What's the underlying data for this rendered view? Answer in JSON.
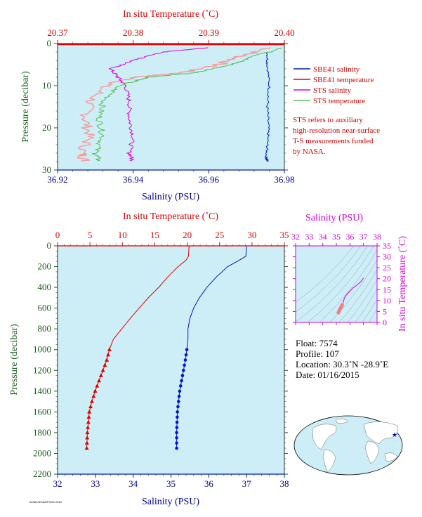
{
  "colors": {
    "plot_bg": "#cdeef7",
    "red": "#e00000",
    "blue": "#0018c8",
    "magenta": "#d800d8",
    "green": "#55c055",
    "pink": "#f4a0a0",
    "darkgreen": "#1a5a1a",
    "navy": "#0000a0"
  },
  "top_plot": {
    "top_axis_title": "In situ Temperature (˚C)",
    "bottom_axis_title": "Salinity (PSU)",
    "left_axis_title": "Pressure (decibar)"
  },
  "bottom_plot": {
    "top_axis_title": "In situ Temperature (˚C)",
    "bottom_axis_title": "Salinity (PSU)",
    "left_axis_title": "Pressure (decibar)"
  },
  "ts_plot": {
    "top_axis_title": "Salinity (PSU)",
    "right_axis_title": "In situ Temperature (˚C)"
  },
  "legend": [
    {
      "label": "SBE41 salinity",
      "color": "#0018c8"
    },
    {
      "label": "SBE41 temperature",
      "color": "#e00000"
    },
    {
      "label": "STS salinity",
      "color": "#d800d8"
    },
    {
      "label": "STS temperature",
      "color": "#55c055"
    }
  ],
  "note": [
    "STS refers to auxiliary",
    "high-resolution near-surface",
    "T-S measurements funded",
    "by NASA."
  ],
  "float_info": {
    "float": "Float:  7574",
    "profile": "Profile:  107",
    "location": "Location:  30.3˚N  -28.9˚E",
    "date": "Date:  01/16/2015"
  },
  "footer_text": "AOML/NOAA/PhOD 2015",
  "chart_data": [
    {
      "type": "line",
      "name": "near-surface profile",
      "xlabel_bottom": "Salinity (PSU)",
      "xlabel_top": "In situ Temperature (˚C)",
      "ylabel": "Pressure (decibar)",
      "salinity_range": [
        36.92,
        36.98
      ],
      "salinity_ticks": [
        "36.92",
        "36.94",
        "36.96",
        "36.98"
      ],
      "temperature_range": [
        20.37,
        20.4
      ],
      "temperature_ticks": [
        "20.37",
        "20.38",
        "20.39",
        "20.40"
      ],
      "pressure_range": [
        0,
        30
      ],
      "pressure_ticks": [
        "0",
        "10",
        "20",
        "30"
      ],
      "y_inverted": true,
      "series": [
        {
          "name": "SBE41 salinity",
          "axis": "salinity",
          "x": [
            36.9755,
            36.9755,
            36.976,
            36.9755,
            36.9758,
            36.9755,
            36.9752,
            36.9755
          ],
          "y": [
            2,
            5,
            10,
            15,
            20,
            24,
            27,
            28
          ]
        },
        {
          "name": "SBE41 temperature",
          "axis": "temperature",
          "x": [
            20.37,
            20.4
          ],
          "y": [
            0.2,
            0.2
          ]
        },
        {
          "name": "STS salinity",
          "axis": "salinity",
          "x": [
            36.96,
            36.948,
            36.94,
            36.934,
            36.936,
            36.938,
            36.939,
            36.939,
            36.94,
            36.939,
            36.94
          ],
          "y": [
            1,
            2,
            4,
            6,
            8,
            10,
            14,
            18,
            22,
            26,
            28
          ]
        },
        {
          "name": "STS temperature",
          "axis": "temperature",
          "x": [
            20.4,
            20.396,
            20.393,
            20.388,
            20.382,
            20.378,
            20.376,
            20.3755,
            20.376,
            20.375,
            20.3755
          ],
          "y": [
            1,
            3,
            5,
            7,
            8,
            10,
            14,
            18,
            22,
            26,
            28
          ]
        }
      ]
    },
    {
      "type": "line",
      "name": "full-depth profile",
      "xlabel_bottom": "Salinity (PSU)",
      "xlabel_top": "In situ Temperature (˚C)",
      "ylabel": "Pressure (decibar)",
      "salinity_range": [
        32,
        38
      ],
      "salinity_ticks": [
        "32",
        "33",
        "34",
        "35",
        "36",
        "37",
        "38"
      ],
      "temperature_range": [
        0,
        35
      ],
      "temperature_ticks": [
        "0",
        "5",
        "10",
        "15",
        "20",
        "25",
        "30",
        "35"
      ],
      "pressure_range": [
        0,
        2200
      ],
      "pressure_ticks": [
        "0",
        "200",
        "400",
        "600",
        "800",
        "1000",
        "1200",
        "1400",
        "1600",
        "1800",
        "2000",
        "2200"
      ],
      "y_inverted": true,
      "series": [
        {
          "name": "temperature",
          "axis": "temperature",
          "x": [
            20.3,
            20.2,
            19.8,
            18.6,
            17.0,
            15.6,
            14.0,
            12.6,
            11.2,
            9.9,
            8.6,
            8.0,
            7.6,
            7.0,
            6.4,
            5.8,
            5.3,
            4.9,
            4.6,
            4.5
          ],
          "y": [
            0,
            100,
            140,
            200,
            300,
            400,
            500,
            600,
            700,
            800,
            900,
            1000,
            1100,
            1200,
            1300,
            1400,
            1500,
            1600,
            1800,
            1950
          ]
        },
        {
          "name": "salinity",
          "axis": "salinity",
          "x": [
            37.0,
            36.98,
            36.8,
            36.5,
            36.2,
            35.95,
            35.75,
            35.6,
            35.5,
            35.45,
            35.45,
            35.42,
            35.38,
            35.33,
            35.28,
            35.23,
            35.2,
            35.17,
            35.15,
            35.15
          ],
          "y": [
            0,
            100,
            140,
            200,
            300,
            400,
            500,
            600,
            700,
            800,
            900,
            1000,
            1100,
            1200,
            1300,
            1400,
            1500,
            1600,
            1800,
            1950
          ]
        }
      ]
    },
    {
      "type": "scatter",
      "name": "T-S diagram",
      "xlabel": "Salinity (PSU)",
      "ylabel": "In situ Temperature (˚C)",
      "xlim": [
        32,
        38
      ],
      "ylim": [
        0,
        35
      ],
      "x_ticks": [
        "32",
        "33",
        "34",
        "35",
        "36",
        "37",
        "38"
      ],
      "y_ticks": [
        "0",
        "5",
        "10",
        "15",
        "20",
        "25",
        "30",
        "35"
      ],
      "series": [
        {
          "name": "profile",
          "x": [
            35.15,
            35.2,
            35.3,
            35.45,
            35.6,
            35.75,
            35.95,
            36.2,
            36.5,
            36.8,
            37.0
          ],
          "y": [
            4.5,
            5.3,
            6.4,
            8.0,
            11.2,
            12.6,
            14.0,
            15.6,
            17.0,
            18.6,
            20.3
          ]
        }
      ]
    }
  ]
}
